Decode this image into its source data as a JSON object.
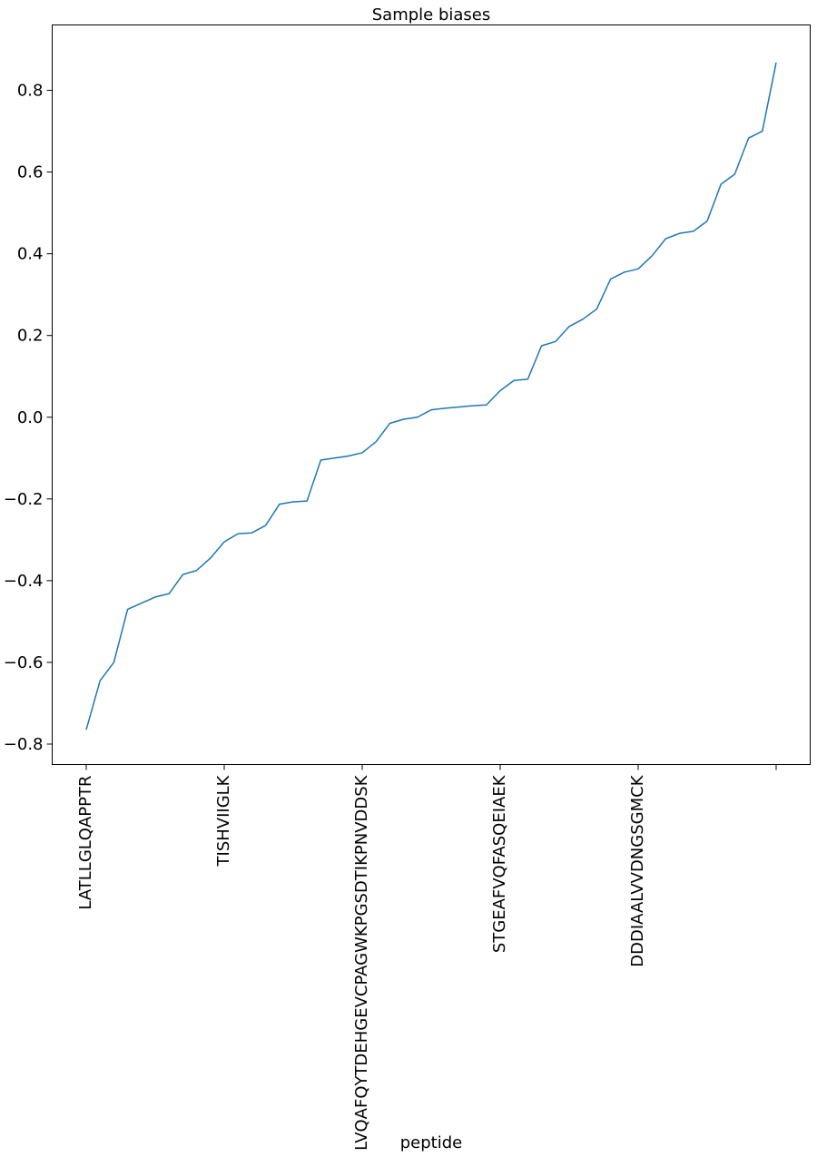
{
  "chart_data": {
    "type": "line",
    "title": "Sample biases",
    "xlabel": "peptide",
    "ylabel": "",
    "ylim": [
      -0.85,
      0.96
    ],
    "grid": false,
    "legend": "none",
    "colors": {
      "line": "#1f77b4"
    },
    "yticks": [
      -0.8,
      -0.6,
      -0.4,
      -0.2,
      0.0,
      0.2,
      0.4,
      0.6,
      0.8
    ],
    "ytick_labels": [
      "−0.8",
      "−0.6",
      "−0.4",
      "−0.2",
      "0.0",
      "0.2",
      "0.4",
      "0.6",
      "0.8"
    ],
    "xticks": [
      {
        "index": 0,
        "label": "LATLLGLQAPPTR"
      },
      {
        "index": 10,
        "label": "TISHVIIGLK"
      },
      {
        "index": 20,
        "label": "LVQAFQYTDEHGEVCPAGWKPGSDTIKPNVDDSK"
      },
      {
        "index": 30,
        "label": "STGEAFVQFASQEIAEK"
      },
      {
        "index": 40,
        "label": "DDDIAALVVDNGSGMCK"
      },
      {
        "index": 50,
        "label": ""
      }
    ],
    "series": [
      {
        "values": [
          -0.765,
          -0.645,
          -0.6,
          -0.47,
          -0.455,
          -0.44,
          -0.432,
          -0.385,
          -0.375,
          -0.345,
          -0.305,
          -0.285,
          -0.283,
          -0.265,
          -0.213,
          -0.207,
          -0.205,
          -0.105,
          -0.1,
          -0.095,
          -0.087,
          -0.06,
          -0.015,
          -0.005,
          0.0,
          0.018,
          0.022,
          0.025,
          0.028,
          0.03,
          0.065,
          0.09,
          0.093,
          0.175,
          0.185,
          0.222,
          0.24,
          0.265,
          0.338,
          0.355,
          0.363,
          0.395,
          0.437,
          0.45,
          0.455,
          0.48,
          0.57,
          0.595,
          0.683,
          0.7,
          0.868
        ]
      }
    ]
  }
}
